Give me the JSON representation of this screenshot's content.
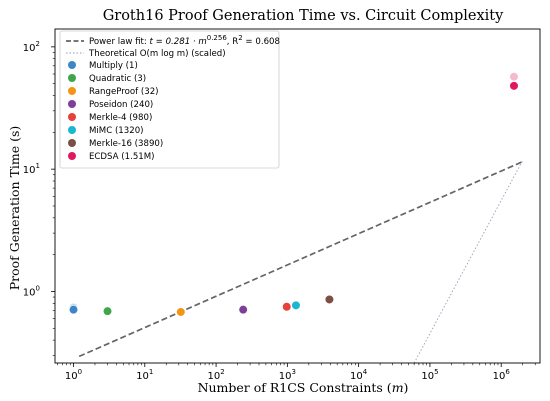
{
  "chart_data": {
    "type": "scatter",
    "title": "Groth16 Proof Generation Time vs. Circuit Complexity",
    "xlabel": "Number of R1CS Constraints (m)",
    "ylabel": "Proof Generation Time (s)",
    "xscale": "log",
    "yscale": "log",
    "xlim": [
      0.55,
      3500000
    ],
    "ylim": [
      0.26,
      140
    ],
    "x_ticks": [
      {
        "value": 1,
        "base": "10",
        "exp": "0"
      },
      {
        "value": 10,
        "base": "10",
        "exp": "1"
      },
      {
        "value": 100,
        "base": "10",
        "exp": "2"
      },
      {
        "value": 1000,
        "base": "10",
        "exp": "3"
      },
      {
        "value": 10000,
        "base": "10",
        "exp": "4"
      },
      {
        "value": 100000,
        "base": "10",
        "exp": "5"
      },
      {
        "value": 1000000,
        "base": "10",
        "exp": "6"
      }
    ],
    "y_ticks": [
      {
        "value": 1,
        "base": "10",
        "exp": "0"
      },
      {
        "value": 10,
        "base": "10",
        "exp": "1"
      },
      {
        "value": 100,
        "base": "10",
        "exp": "2"
      }
    ],
    "grid": false,
    "legend_position": "top-left",
    "fit_line": {
      "label_prefix": "Power law fit: ",
      "label_eq": "t = 0.281 · m",
      "label_exp": "0.256",
      "label_suffix": ", R",
      "label_r_exp": "2",
      "label_r_val": " = 0.608",
      "coef": 0.281,
      "exponent": 0.256,
      "color": "#666666"
    },
    "theoretical_line": {
      "label": "Theoretical O(m log m) (scaled)",
      "color": "#8fa3b8",
      "points": [
        {
          "x": 60000,
          "y": 0.26
        },
        {
          "x": 2000000,
          "y": 11.8
        }
      ]
    },
    "series": [
      {
        "name": "Multiply (1)",
        "color": "#3b86c6",
        "x": 1,
        "y": 0.71
      },
      {
        "name": "Quadratic (3)",
        "color": "#3fa64a",
        "x": 3,
        "y": 0.69
      },
      {
        "name": "RangeProof (32)",
        "color": "#f39414",
        "x": 32,
        "y": 0.68
      },
      {
        "name": "Poseidon (240)",
        "color": "#7e3f98",
        "x": 240,
        "y": 0.71
      },
      {
        "name": "Merkle-4 (980)",
        "color": "#e8413a",
        "x": 980,
        "y": 0.75
      },
      {
        "name": "MiMC (1320)",
        "color": "#1bb7cf",
        "x": 1320,
        "y": 0.77
      },
      {
        "name": "Merkle-16 (3890)",
        "color": "#7a5045",
        "x": 3890,
        "y": 0.86
      },
      {
        "name": "ECDSA (1.51M)",
        "color": "#e0195f",
        "x": 1510000,
        "y": 48
      }
    ],
    "ghost_points": [
      {
        "x": 1,
        "y": 0.74,
        "color": "#3b86c6"
      },
      {
        "x": 1510000,
        "y": 57,
        "color": "#e0195f"
      }
    ]
  }
}
